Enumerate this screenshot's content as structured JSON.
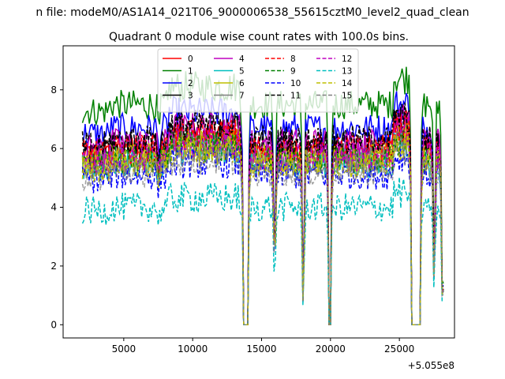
{
  "chart_data": {
    "type": "line",
    "suptitle": "n file: modeM0/AS1A14_021T06_9000006538_55615cztM0_level2_quad_clean",
    "title": "Quadrant 0 module wise count rates with 100.0s bins.",
    "xlabel": "",
    "ylabel": "",
    "x_offset_label": "+5.055e8",
    "xlim": [
      600,
      29000
    ],
    "ylim": [
      -0.45,
      9.5
    ],
    "x_ticks": [
      5000,
      10000,
      15000,
      20000,
      25000
    ],
    "x_tick_labels": [
      "5000",
      "10000",
      "15000",
      "20000",
      "25000"
    ],
    "y_ticks": [
      0,
      2,
      4,
      6,
      8
    ],
    "y_tick_labels": [
      "0",
      "2",
      "4",
      "6",
      "8"
    ],
    "x_start": 2000,
    "x_end": 28200,
    "bin_size": 100,
    "dips": [
      {
        "start": 7500,
        "end": 7600,
        "depth": 0.9
      },
      {
        "start": 13700,
        "end": 14000,
        "depth": 0.0
      },
      {
        "start": 15900,
        "end": 16000,
        "depth": 0.5
      },
      {
        "start": 18000,
        "end": 18050,
        "depth": 0.15
      },
      {
        "start": 19900,
        "end": 20000,
        "depth": 0.0
      },
      {
        "start": 25900,
        "end": 26500,
        "depth": 0.0
      },
      {
        "start": 27500,
        "end": 27550,
        "depth": 0.3
      },
      {
        "start": 28100,
        "end": 28200,
        "depth": 0.2
      }
    ],
    "series": [
      {
        "name": "0",
        "color": "#ff0000",
        "dash": "solid",
        "base": 5.9
      },
      {
        "name": "1",
        "color": "#008000",
        "dash": "solid",
        "base": 7.5
      },
      {
        "name": "2",
        "color": "#0000ff",
        "dash": "solid",
        "base": 6.7
      },
      {
        "name": "3",
        "color": "#000000",
        "dash": "solid",
        "base": 6.1
      },
      {
        "name": "4",
        "color": "#bf00bf",
        "dash": "solid",
        "base": 6.2
      },
      {
        "name": "5",
        "color": "#00bfbf",
        "dash": "solid",
        "base": 5.5
      },
      {
        "name": "6",
        "color": "#bfbf00",
        "dash": "solid",
        "base": 5.7
      },
      {
        "name": "7",
        "color": "#7f7f7f",
        "dash": "solid",
        "base": 5.6
      },
      {
        "name": "8",
        "color": "#ff0000",
        "dash": "dashed",
        "base": 6.0
      },
      {
        "name": "9",
        "color": "#008000",
        "dash": "dashed",
        "base": 5.6
      },
      {
        "name": "10",
        "color": "#0000ff",
        "dash": "dashed",
        "base": 5.1
      },
      {
        "name": "11",
        "color": "#000000",
        "dash": "dashed",
        "base": 6.3
      },
      {
        "name": "12",
        "color": "#bf00bf",
        "dash": "dashed",
        "base": 5.7
      },
      {
        "name": "13",
        "color": "#00bfbf",
        "dash": "dashed",
        "base": 4.0
      },
      {
        "name": "14",
        "color": "#bfbf00",
        "dash": "dashed",
        "base": 5.5
      },
      {
        "name": "15",
        "color": "#7f7f7f",
        "dash": "dashed",
        "base": 5.2
      }
    ],
    "legend": {
      "placement": "upper center",
      "columns": 4
    }
  }
}
